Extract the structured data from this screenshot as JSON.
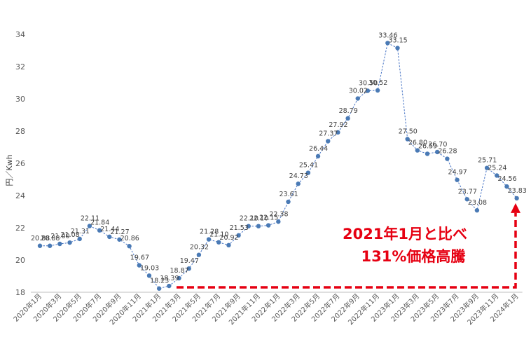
{
  "chart_data": {
    "type": "line",
    "ylabel": "円／Kwh",
    "ylim": [
      18,
      34
    ],
    "yticks": [
      18,
      20,
      22,
      24,
      26,
      28,
      30,
      32,
      34
    ],
    "grid": false,
    "line_color": "#4472c4",
    "marker_color": "#4a7ab5",
    "points": [
      {
        "x": "2020年1月",
        "y": 20.88,
        "label": "20.88"
      },
      {
        "x": "2020年2月",
        "y": 20.88,
        "label": "20.88"
      },
      {
        "x": "2020年3月",
        "y": 21.0,
        "label": "21.00"
      },
      {
        "x": "2020年4月",
        "y": 21.08,
        "label": "21.08"
      },
      {
        "x": "2020年5月",
        "y": 21.31,
        "label": "21.31"
      },
      {
        "x": "2020年6月",
        "y": 22.11,
        "label": "22.11"
      },
      {
        "x": "2020年7月",
        "y": 21.84,
        "label": "21.84"
      },
      {
        "x": "2020年8月",
        "y": 21.44,
        "label": "21.44"
      },
      {
        "x": "2020年9月",
        "y": 21.27,
        "label": "21.27"
      },
      {
        "x": "2020年10月",
        "y": 20.86,
        "label": "20.86"
      },
      {
        "x": "2020年11月",
        "y": 19.67,
        "label": "19.67"
      },
      {
        "x": "2020年12月",
        "y": 19.03,
        "label": "19.03"
      },
      {
        "x": "2021年1月",
        "y": 18.23,
        "label": "18.23"
      },
      {
        "x": "2021年2月",
        "y": 18.39,
        "label": "18.39"
      },
      {
        "x": "2021年3月",
        "y": 18.87,
        "label": "18.87"
      },
      {
        "x": "2021年4月",
        "y": 19.47,
        "label": "19.47"
      },
      {
        "x": "2021年5月",
        "y": 20.32,
        "label": "20.32"
      },
      {
        "x": "2021年6月",
        "y": 21.28,
        "label": "21.28"
      },
      {
        "x": "2021年7月",
        "y": 21.1,
        "label": "21.10"
      },
      {
        "x": "2021年8月",
        "y": 20.92,
        "label": "20.92"
      },
      {
        "x": "2021年9月",
        "y": 21.53,
        "label": "21.53"
      },
      {
        "x": "2021年10月",
        "y": 22.1,
        "label": "22.10"
      },
      {
        "x": "2021年11月",
        "y": 22.1,
        "label": "22.10"
      },
      {
        "x": "2021年12月",
        "y": 22.15,
        "label": "22.15"
      },
      {
        "x": "2022年1月",
        "y": 22.38,
        "label": "22.38"
      },
      {
        "x": "2022年2月",
        "y": 23.61,
        "label": "23.61"
      },
      {
        "x": "2022年3月",
        "y": 24.73,
        "label": "24.73"
      },
      {
        "x": "2022年4月",
        "y": 25.41,
        "label": "25.41"
      },
      {
        "x": "2022年5月",
        "y": 26.44,
        "label": "26.44"
      },
      {
        "x": "2022年6月",
        "y": 27.37,
        "label": "27.37"
      },
      {
        "x": "2022年7月",
        "y": 27.92,
        "label": "27.92"
      },
      {
        "x": "2022年8月",
        "y": 28.79,
        "label": "28.79"
      },
      {
        "x": "2022年9月",
        "y": 30.02,
        "label": "30.02"
      },
      {
        "x": "2022年10月",
        "y": 30.5,
        "label": "30.50"
      },
      {
        "x": "2022年11月",
        "y": 30.52,
        "label": "30.52"
      },
      {
        "x": "2022年12月",
        "y": 33.46,
        "label": "33.46"
      },
      {
        "x": "2023年1月",
        "y": 33.15,
        "label": "33.15"
      },
      {
        "x": "2023年2月",
        "y": 27.5,
        "label": "27.50"
      },
      {
        "x": "2023年3月",
        "y": 26.8,
        "label": "26.80"
      },
      {
        "x": "2023年4月",
        "y": 26.59,
        "label": "26.59"
      },
      {
        "x": "2023年5月",
        "y": 26.7,
        "label": "26.70"
      },
      {
        "x": "2023年6月",
        "y": 26.28,
        "label": "26.28"
      },
      {
        "x": "2023年7月",
        "y": 24.97,
        "label": "24.97"
      },
      {
        "x": "2023年8月",
        "y": 23.77,
        "label": "23.77"
      },
      {
        "x": "2023年9月",
        "y": 23.08,
        "label": "23.08"
      },
      {
        "x": "2023年10月",
        "y": 25.71,
        "label": "25.71"
      },
      {
        "x": "2023年11月",
        "y": 25.24,
        "label": "25.24"
      },
      {
        "x": "2023年12月",
        "y": 24.56,
        "label": "24.56"
      },
      {
        "x": "2024年1月",
        "y": 23.83,
        "label": "23.83"
      }
    ],
    "xtick_labels": [
      "2020年1月",
      "2020年3月",
      "2020年5月",
      "2020年7月",
      "2020年9月",
      "2020年11月",
      "2021年1月",
      "2021年3月",
      "2021年5月",
      "2021年7月",
      "2021年9月",
      "2021年11月",
      "2022年1月",
      "2022年3月",
      "2022年5月",
      "2022年7月",
      "2022年9月",
      "2022年11月",
      "2023年1月",
      "2023年3月",
      "2023年5月",
      "2023年7月",
      "2023年9月",
      "2023年11月",
      "2024年1月"
    ],
    "annotation": {
      "lines": [
        "2021年1月と比べ",
        "131%価格高騰"
      ],
      "color": "#e60012",
      "from": "2021年1月",
      "to": "2024年1月"
    }
  }
}
